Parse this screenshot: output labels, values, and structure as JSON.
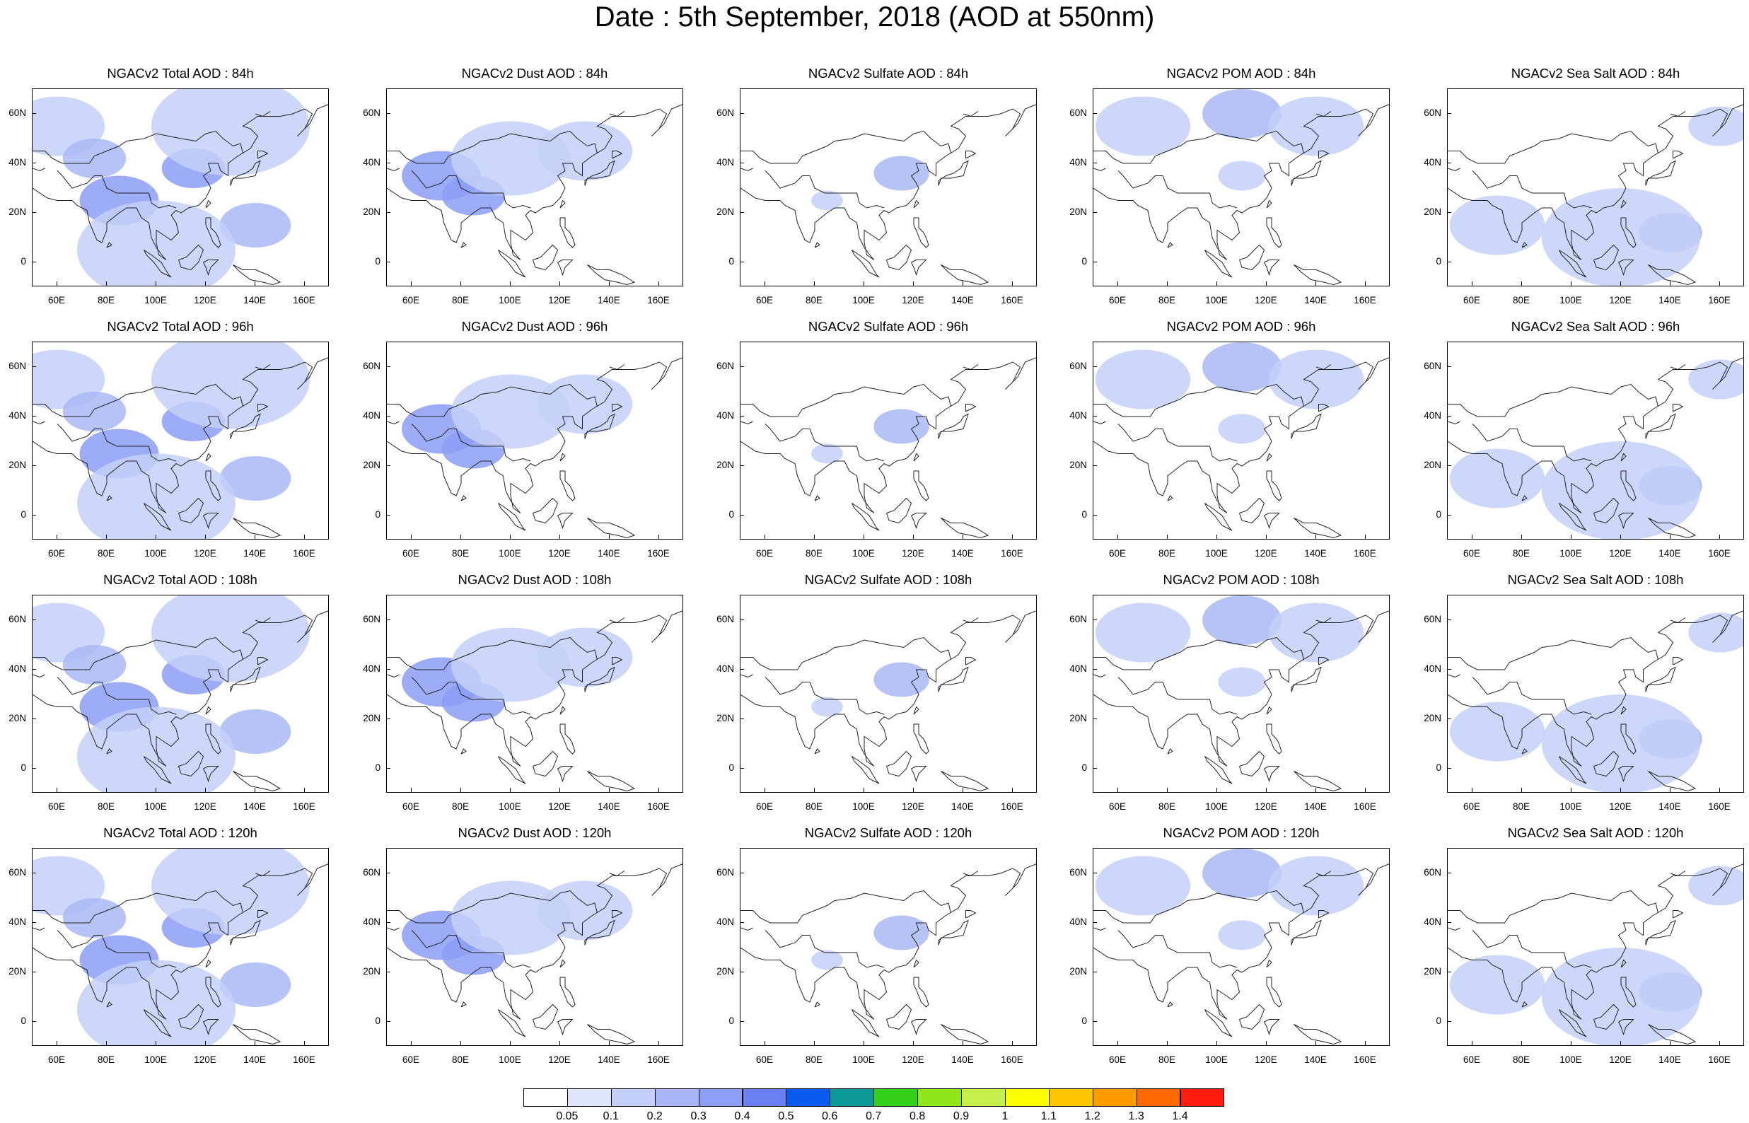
{
  "figure": {
    "title": "Date : 5th September, 2018 (AOD at 550nm)"
  },
  "axes": {
    "lat_ticks": [
      "60N",
      "40N",
      "20N",
      "0"
    ],
    "lat_values": [
      60,
      40,
      20,
      0
    ],
    "lon_ticks": [
      "60E",
      "80E",
      "100E",
      "120E",
      "140E",
      "160E"
    ],
    "lon_values": [
      60,
      80,
      100,
      120,
      140,
      160
    ],
    "lon_range": [
      50,
      170
    ],
    "lat_range": [
      -10,
      70
    ]
  },
  "rows": [
    "84h",
    "96h",
    "108h",
    "120h"
  ],
  "panels": [
    {
      "species": "total",
      "titles": [
        "NGACv2 Total AOD : 84h",
        "NGACv2 Total AOD : 96h",
        "NGACv2 Total AOD : 108h",
        "NGACv2 Total AOD : 120h"
      ]
    },
    {
      "species": "dust",
      "titles": [
        "NGACv2 Dust AOD : 84h",
        "NGACv2 Dust AOD : 96h",
        "NGACv2 Dust AOD : 108h",
        "NGACv2 Dust AOD : 120h"
      ]
    },
    {
      "species": "sulfate",
      "titles": [
        "NGACv2 Sulfate AOD : 84h",
        "NGACv2 Sulfate AOD : 96h",
        "NGACv2 Sulfate AOD : 108h",
        "NGACv2 Sulfate AOD : 120h"
      ]
    },
    {
      "species": "pom",
      "titles": [
        "NGACv2 POM AOD : 84h",
        "NGACv2 POM AOD : 96h",
        "NGACv2 POM AOD : 108h",
        "NGACv2 POM AOD : 120h"
      ]
    },
    {
      "species": "seasalt",
      "titles": [
        "NGACv2 Sea Salt AOD : 84h",
        "NGACv2 Sea Salt AOD : 96h",
        "NGACv2 Sea Salt AOD : 108h",
        "NGACv2 Sea Salt  AOD : 120h"
      ]
    }
  ],
  "colorbar": {
    "labels": [
      "0.05",
      "0.1",
      "0.2",
      "0.3",
      "0.4",
      "0.5",
      "0.6",
      "0.7",
      "0.8",
      "0.9",
      "1",
      "1.1",
      "1.2",
      "1.3",
      "1.4"
    ],
    "colors": [
      "#ffffff",
      "#dfe6fb",
      "#c4d0f8",
      "#a8b8f6",
      "#8c9ef5",
      "#6a7ff0",
      "#0a5cf0",
      "#0f9a9a",
      "#35d01a",
      "#8fe61a",
      "#c8f04a",
      "#ffff00",
      "#ffc700",
      "#ff9a00",
      "#ff6a00",
      "#ff1e10"
    ]
  },
  "chart_data": {
    "type": "heatmap",
    "title": "Date : 5th September, 2018 (AOD at 550nm)",
    "variable": "AOD at 550nm",
    "x_range": [
      50,
      170
    ],
    "y_range": [
      -10,
      70
    ],
    "levels": [
      0.05,
      0.1,
      0.2,
      0.3,
      0.4,
      0.5,
      0.6,
      0.7,
      0.8,
      0.9,
      1,
      1.1,
      1.2,
      1.3,
      1.4
    ],
    "fields": {
      "total": [
        {
          "lon": 60,
          "lat": 55,
          "aod": 0.1,
          "r": 12
        },
        {
          "lon": 75,
          "lat": 42,
          "aod": 0.2,
          "r": 8
        },
        {
          "lon": 115,
          "lat": 38,
          "aod": 0.3,
          "r": 8
        },
        {
          "lon": 85,
          "lat": 25,
          "aod": 0.3,
          "r": 10
        },
        {
          "lon": 140,
          "lat": 15,
          "aod": 0.2,
          "r": 9
        },
        {
          "lon": 130,
          "lat": 55,
          "aod": 0.1,
          "r": 20
        },
        {
          "lon": 100,
          "lat": 5,
          "aod": 0.1,
          "r": 20
        }
      ],
      "dust": [
        {
          "lon": 72,
          "lat": 35,
          "aod": 0.3,
          "r": 10
        },
        {
          "lon": 85,
          "lat": 27,
          "aod": 0.3,
          "r": 8
        },
        {
          "lon": 100,
          "lat": 42,
          "aod": 0.1,
          "r": 15
        },
        {
          "lon": 130,
          "lat": 45,
          "aod": 0.1,
          "r": 12
        }
      ],
      "sulfate": [
        {
          "lon": 115,
          "lat": 36,
          "aod": 0.2,
          "r": 7
        },
        {
          "lon": 85,
          "lat": 25,
          "aod": 0.1,
          "r": 4
        }
      ],
      "pom": [
        {
          "lon": 110,
          "lat": 60,
          "aod": 0.2,
          "r": 10
        },
        {
          "lon": 70,
          "lat": 55,
          "aod": 0.1,
          "r": 12
        },
        {
          "lon": 140,
          "lat": 55,
          "aod": 0.1,
          "r": 12
        },
        {
          "lon": 110,
          "lat": 35,
          "aod": 0.1,
          "r": 6
        }
      ],
      "seasalt": [
        {
          "lon": 140,
          "lat": 12,
          "aod": 0.2,
          "r": 8
        },
        {
          "lon": 120,
          "lat": 10,
          "aod": 0.1,
          "r": 20
        },
        {
          "lon": 70,
          "lat": 15,
          "aod": 0.1,
          "r": 12
        },
        {
          "lon": 160,
          "lat": 55,
          "aod": 0.1,
          "r": 8
        }
      ]
    }
  }
}
